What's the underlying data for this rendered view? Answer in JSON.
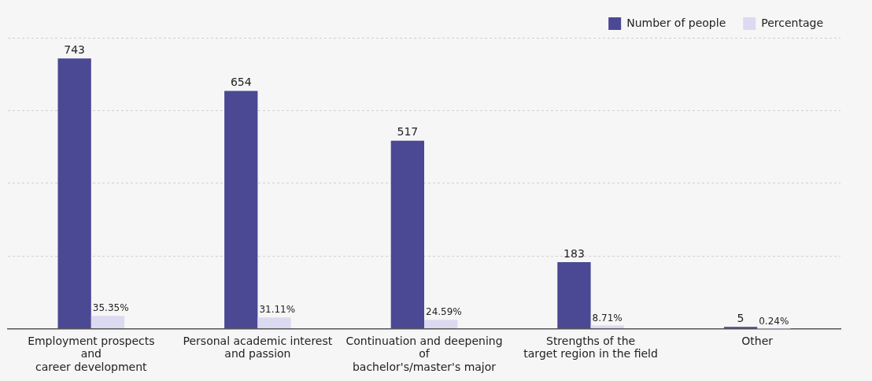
{
  "chart_data": {
    "type": "bar",
    "categories": [
      "Employment prospects\nand\ncareer development",
      "Personal academic interest\nand passion",
      "Continuation and deepening\nof\nbachelor's/master's major",
      "Strengths of the\ntarget region in the field",
      "Other"
    ],
    "series": [
      {
        "name": "Number of people",
        "color": "#4b4994",
        "values": [
          743,
          654,
          517,
          183,
          5
        ],
        "value_labels": [
          "743",
          "654",
          "517",
          "183",
          "5"
        ]
      },
      {
        "name": "Percentage",
        "color": "#dcdaf0",
        "values": [
          35.35,
          31.11,
          24.59,
          8.71,
          0.24
        ],
        "value_labels": [
          "35.35%",
          "31.11%",
          "24.59%",
          "8.71%",
          "0.24%"
        ]
      }
    ],
    "grid": "y",
    "legend": "top right",
    "tick_labels": "x"
  }
}
